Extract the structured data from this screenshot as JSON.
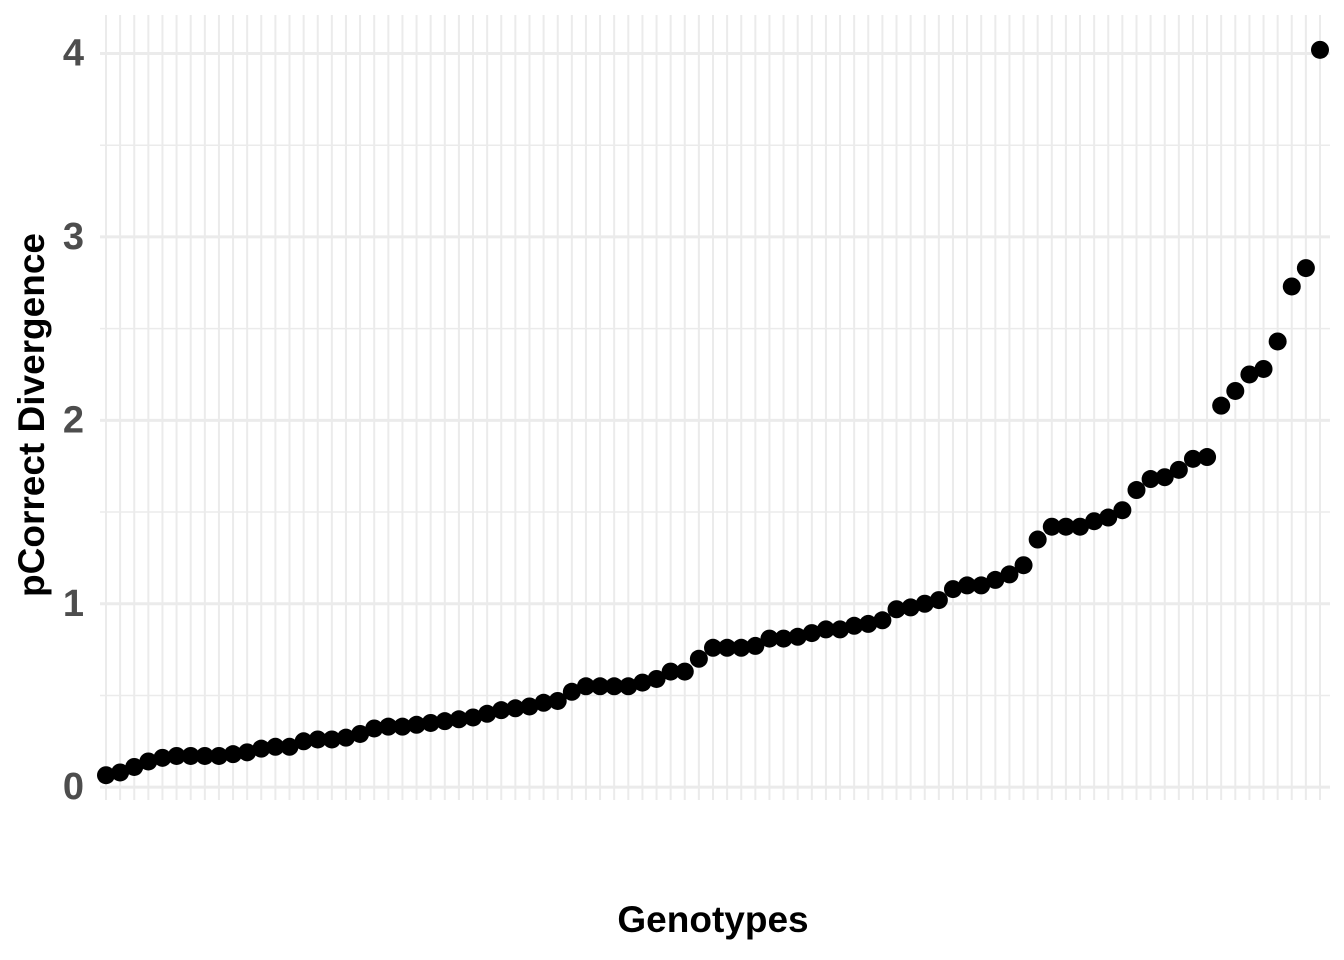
{
  "chart_data": {
    "type": "scatter",
    "x_label": "Genotypes",
    "y_label": "pCorrect Divergence",
    "categories": [
      null,
      null,
      null,
      null,
      null,
      null,
      null,
      null,
      null,
      null,
      null,
      null,
      null,
      null,
      null,
      null,
      null,
      null,
      null,
      null,
      null,
      null,
      null,
      null,
      null,
      null,
      null,
      null,
      null,
      null,
      null,
      null,
      null,
      null,
      null,
      null,
      null,
      null,
      null,
      null,
      null,
      null,
      null,
      null,
      null,
      null,
      null,
      null,
      null,
      null,
      null,
      null,
      null,
      null,
      null,
      null,
      null,
      null,
      null,
      null,
      null,
      null,
      null,
      null,
      null,
      null,
      null,
      null,
      null,
      null,
      null,
      null,
      null,
      null,
      null,
      null,
      null,
      null,
      null,
      null,
      null,
      null,
      null,
      null,
      null,
      null,
      null
    ],
    "values": [
      0.065,
      0.08,
      0.11,
      0.14,
      0.16,
      0.17,
      0.17,
      0.17,
      0.17,
      0.18,
      0.19,
      0.21,
      0.22,
      0.22,
      0.25,
      0.26,
      0.26,
      0.27,
      0.29,
      0.32,
      0.33,
      0.33,
      0.34,
      0.35,
      0.36,
      0.37,
      0.38,
      0.4,
      0.42,
      0.43,
      0.44,
      0.46,
      0.47,
      0.52,
      0.55,
      0.55,
      0.55,
      0.55,
      0.57,
      0.59,
      0.63,
      0.63,
      0.7,
      0.76,
      0.76,
      0.76,
      0.77,
      0.81,
      0.81,
      0.82,
      0.84,
      0.86,
      0.86,
      0.88,
      0.89,
      0.91,
      0.97,
      0.98,
      1.0,
      1.02,
      1.08,
      1.1,
      1.1,
      1.13,
      1.16,
      1.21,
      1.35,
      1.42,
      1.42,
      1.42,
      1.45,
      1.47,
      1.51,
      1.62,
      1.68,
      1.69,
      1.73,
      1.79,
      1.8,
      2.08,
      2.16,
      2.25,
      2.28,
      2.43,
      2.73,
      2.83,
      4.02
    ],
    "color": "#000000",
    "ylim": [
      -0.07,
      4.21
    ],
    "yticks": [
      0,
      1,
      2,
      3,
      4
    ],
    "grid": true
  }
}
